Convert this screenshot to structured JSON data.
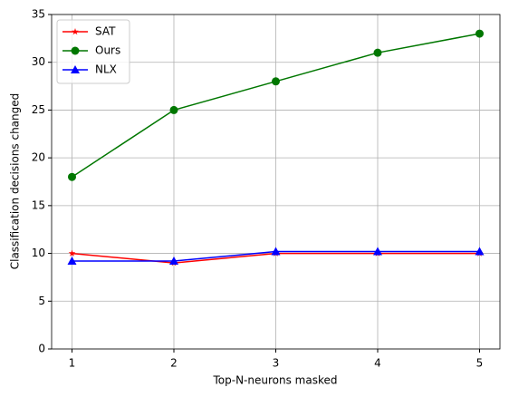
{
  "chart_data": {
    "type": "line",
    "x_label": "Top-N-neurons masked",
    "y_label": "Classification decisions changed",
    "x": [
      1,
      2,
      3,
      4,
      5
    ],
    "series": [
      {
        "name": "SAT",
        "color": "#ff0000",
        "marker": "star",
        "values": [
          10,
          9,
          10,
          10,
          10
        ]
      },
      {
        "name": "Ours",
        "color": "#007700",
        "marker": "circle",
        "values": [
          18,
          25,
          28,
          31,
          33
        ]
      },
      {
        "name": "NLX",
        "color": "#0000ff",
        "marker": "triangle",
        "values": [
          9.2,
          9.2,
          10.2,
          10.2,
          10.2
        ]
      }
    ],
    "xlim": [
      0.8,
      5.2
    ],
    "xticks": [
      1,
      2,
      3,
      4,
      5
    ],
    "ylim": [
      0,
      35
    ],
    "yticks": [
      0,
      5,
      10,
      15,
      20,
      25,
      30,
      35
    ],
    "grid": true,
    "legend": "upper-left"
  }
}
